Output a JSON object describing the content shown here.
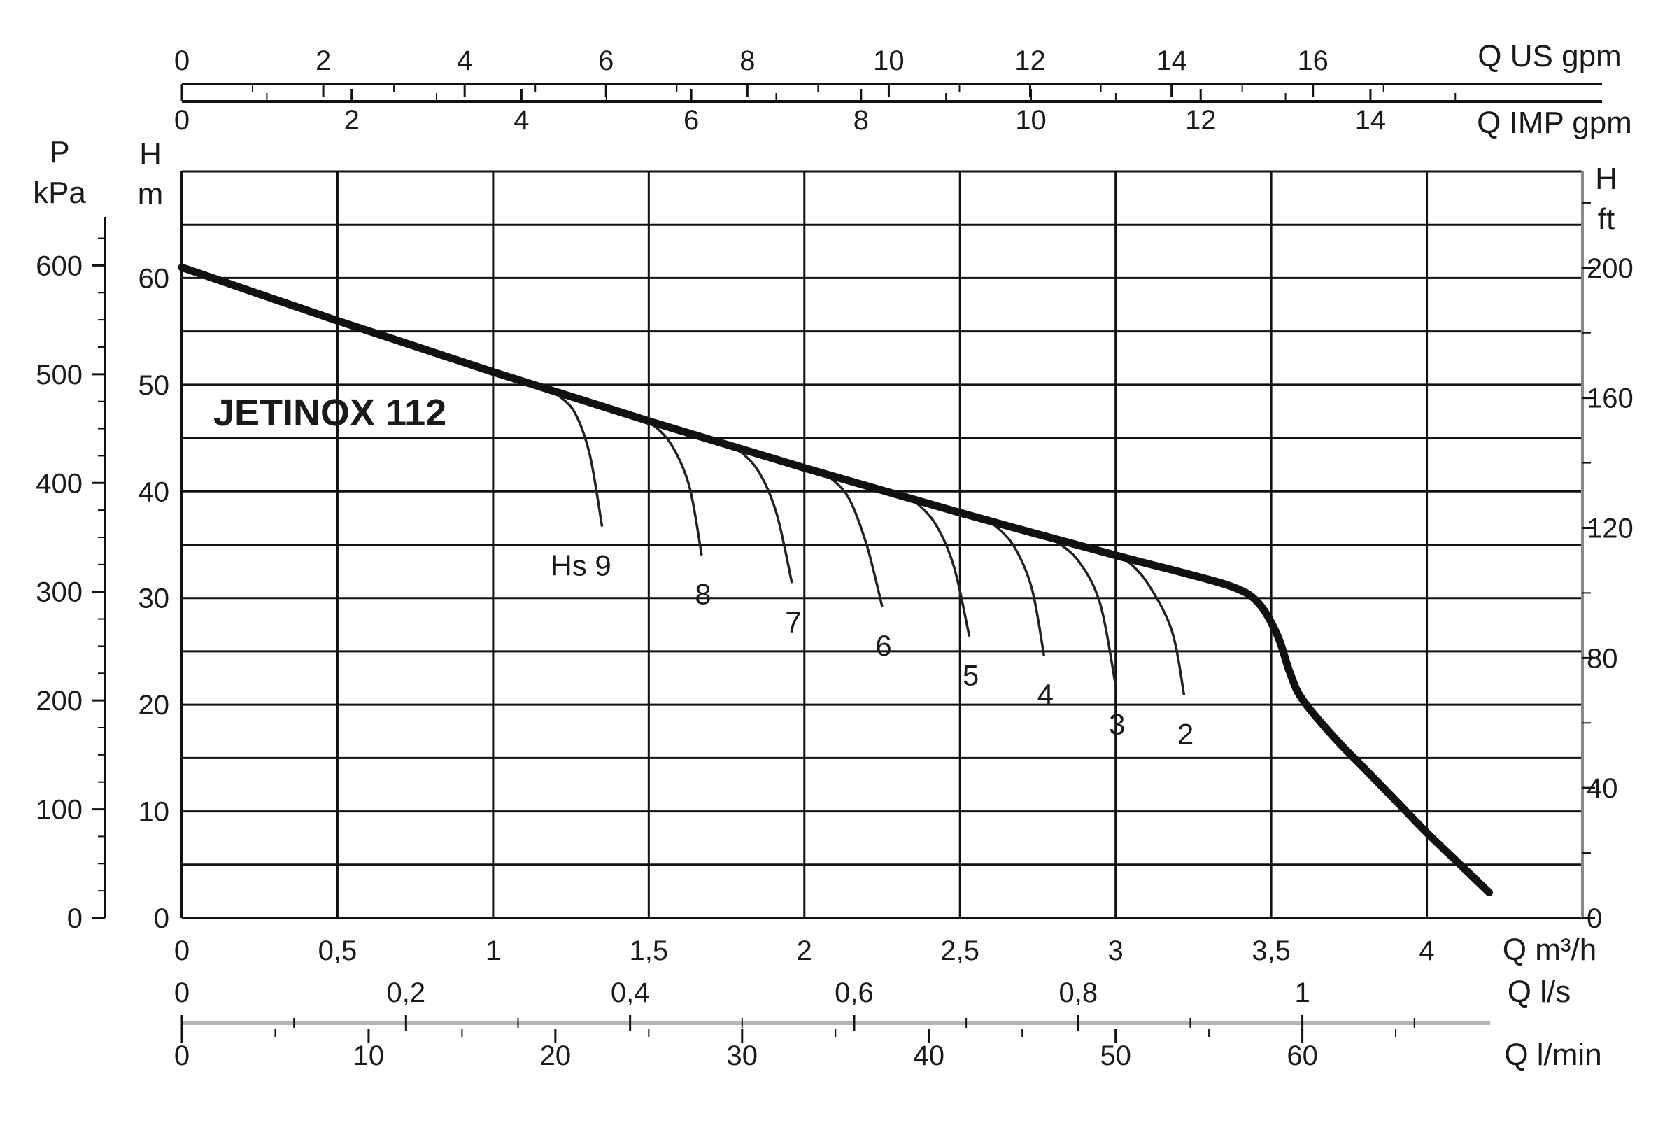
{
  "chart_data": {
    "type": "line",
    "title": "JETINOX 112",
    "grid": true,
    "x_primary": {
      "label": "Q m³/h",
      "range": [
        0,
        4.5
      ],
      "ticks": [
        {
          "v": 0,
          "t": "0"
        },
        {
          "v": 0.5,
          "t": "0,5"
        },
        {
          "v": 1,
          "t": "1"
        },
        {
          "v": 1.5,
          "t": "1,5"
        },
        {
          "v": 2,
          "t": "2"
        },
        {
          "v": 2.5,
          "t": "2,5"
        },
        {
          "v": 3,
          "t": "3"
        },
        {
          "v": 3.5,
          "t": "3,5"
        },
        {
          "v": 4,
          "t": "4"
        }
      ]
    },
    "x_ls": {
      "label": "Q l/s",
      "ticks": [
        {
          "v": 0,
          "t": "0"
        },
        {
          "v": 0.2,
          "t": "0,2"
        },
        {
          "v": 0.4,
          "t": "0,4"
        },
        {
          "v": 0.6,
          "t": "0,6"
        },
        {
          "v": 0.8,
          "t": "0,8"
        },
        {
          "v": 1,
          "t": "1"
        }
      ]
    },
    "x_lmin": {
      "label": "Q l/min",
      "ticks": [
        {
          "v": 0,
          "t": "0"
        },
        {
          "v": 10,
          "t": "10"
        },
        {
          "v": 20,
          "t": "20"
        },
        {
          "v": 30,
          "t": "30"
        },
        {
          "v": 40,
          "t": "40"
        },
        {
          "v": 50,
          "t": "50"
        },
        {
          "v": 60,
          "t": "60"
        }
      ]
    },
    "x_usgpm": {
      "label": "Q US gpm",
      "ticks": [
        {
          "v": 0,
          "t": "0"
        },
        {
          "v": 2,
          "t": "2"
        },
        {
          "v": 4,
          "t": "4"
        },
        {
          "v": 6,
          "t": "6"
        },
        {
          "v": 8,
          "t": "8"
        },
        {
          "v": 10,
          "t": "10"
        },
        {
          "v": 12,
          "t": "12"
        },
        {
          "v": 14,
          "t": "14"
        },
        {
          "v": 16,
          "t": "16"
        }
      ]
    },
    "x_impgpm": {
      "label": "Q IMP gpm",
      "ticks": [
        {
          "v": 0,
          "t": "0"
        },
        {
          "v": 2,
          "t": "2"
        },
        {
          "v": 4,
          "t": "4"
        },
        {
          "v": 6,
          "t": "6"
        },
        {
          "v": 8,
          "t": "8"
        },
        {
          "v": 10,
          "t": "10"
        },
        {
          "v": 12,
          "t": "12"
        },
        {
          "v": 14,
          "t": "14"
        }
      ]
    },
    "y_head_m": {
      "label_line1": "H",
      "label_line2": "m",
      "range": [
        0,
        70
      ],
      "ticks": [
        {
          "v": 0,
          "t": "0"
        },
        {
          "v": 10,
          "t": "10"
        },
        {
          "v": 20,
          "t": "20"
        },
        {
          "v": 30,
          "t": "30"
        },
        {
          "v": 40,
          "t": "40"
        },
        {
          "v": 50,
          "t": "50"
        },
        {
          "v": 60,
          "t": "60"
        }
      ]
    },
    "y_kpa": {
      "label_line1": "P",
      "label_line2": "kPa",
      "ticks": [
        {
          "v": 0,
          "t": "0"
        },
        {
          "v": 100,
          "t": "100"
        },
        {
          "v": 200,
          "t": "200"
        },
        {
          "v": 300,
          "t": "300"
        },
        {
          "v": 400,
          "t": "400"
        },
        {
          "v": 500,
          "t": "500"
        },
        {
          "v": 600,
          "t": "600"
        }
      ]
    },
    "y_ft": {
      "label_line1": "H",
      "label_line2": "ft",
      "ticks": [
        {
          "v": 0,
          "t": "0"
        },
        {
          "v": 40,
          "t": "40"
        },
        {
          "v": 80,
          "t": "80"
        },
        {
          "v": 120,
          "t": "120"
        },
        {
          "v": 160,
          "t": "160"
        },
        {
          "v": 200,
          "t": "200"
        }
      ]
    },
    "series": [
      {
        "points": [
          {
            "x": 0,
            "y": 61
          },
          {
            "x": 0.5,
            "y": 56
          },
          {
            "x": 1,
            "y": 51.2
          },
          {
            "x": 1.5,
            "y": 46.6
          },
          {
            "x": 2,
            "y": 42.2
          },
          {
            "x": 2.5,
            "y": 38
          },
          {
            "x": 3,
            "y": 34
          },
          {
            "x": 3.2,
            "y": 32.5
          },
          {
            "x": 3.38,
            "y": 31
          },
          {
            "x": 3.46,
            "y": 29.5
          },
          {
            "x": 3.52,
            "y": 26.5
          },
          {
            "x": 3.56,
            "y": 23
          },
          {
            "x": 3.6,
            "y": 20.5
          },
          {
            "x": 3.7,
            "y": 17
          },
          {
            "x": 3.8,
            "y": 14
          },
          {
            "x": 3.9,
            "y": 11
          },
          {
            "x": 4,
            "y": 8
          },
          {
            "x": 4.1,
            "y": 5.2
          },
          {
            "x": 4.2,
            "y": 2.4
          }
        ]
      }
    ],
    "suction_curves": [
      {
        "label": "Hs 9",
        "points": [
          {
            "x": 1.2,
            "y": 49.2
          },
          {
            "x": 1.26,
            "y": 47.5
          },
          {
            "x": 1.31,
            "y": 43.5
          },
          {
            "x": 1.35,
            "y": 36.7
          }
        ]
      },
      {
        "label": "8",
        "points": [
          {
            "x": 1.5,
            "y": 46.6
          },
          {
            "x": 1.57,
            "y": 44.5
          },
          {
            "x": 1.63,
            "y": 40.5
          },
          {
            "x": 1.67,
            "y": 34
          }
        ]
      },
      {
        "label": "7",
        "points": [
          {
            "x": 1.78,
            "y": 44.1
          },
          {
            "x": 1.85,
            "y": 42
          },
          {
            "x": 1.91,
            "y": 38
          },
          {
            "x": 1.96,
            "y": 31.4
          }
        ]
      },
      {
        "label": "6",
        "points": [
          {
            "x": 2.07,
            "y": 41.6
          },
          {
            "x": 2.14,
            "y": 39.5
          },
          {
            "x": 2.2,
            "y": 35
          },
          {
            "x": 2.25,
            "y": 29.2
          }
        ]
      },
      {
        "label": "5",
        "points": [
          {
            "x": 2.35,
            "y": 39.2
          },
          {
            "x": 2.42,
            "y": 37
          },
          {
            "x": 2.48,
            "y": 33
          },
          {
            "x": 2.53,
            "y": 26.4
          }
        ]
      },
      {
        "label": "4",
        "points": [
          {
            "x": 2.6,
            "y": 37.1
          },
          {
            "x": 2.67,
            "y": 35
          },
          {
            "x": 2.73,
            "y": 31
          },
          {
            "x": 2.77,
            "y": 24.6
          }
        ]
      },
      {
        "label": "3",
        "points": [
          {
            "x": 2.8,
            "y": 35.5
          },
          {
            "x": 2.88,
            "y": 33.5
          },
          {
            "x": 2.95,
            "y": 29.5
          },
          {
            "x": 3,
            "y": 21.8
          }
        ]
      },
      {
        "label": "2",
        "points": [
          {
            "x": 3.03,
            "y": 33.7
          },
          {
            "x": 3.1,
            "y": 31.5
          },
          {
            "x": 3.18,
            "y": 27
          },
          {
            "x": 3.22,
            "y": 20.9
          }
        ]
      }
    ]
  }
}
